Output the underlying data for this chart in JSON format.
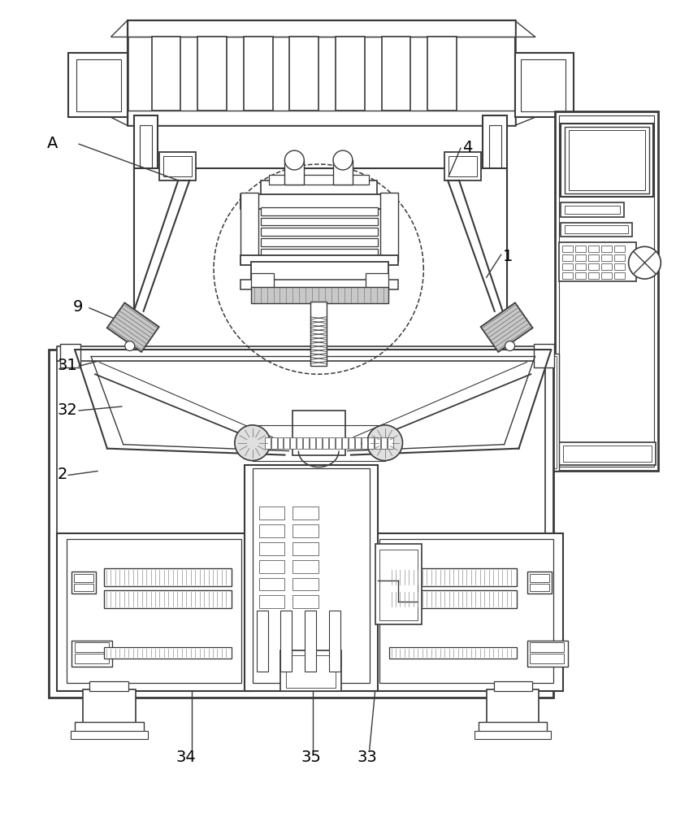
{
  "bg_color": "#ffffff",
  "lc": "#3a3a3a",
  "lw": 1.3,
  "fig_w": 8.32,
  "fig_h": 10.0,
  "dpi": 100,
  "xlim": [
    0,
    832
  ],
  "ylim": [
    0,
    1000
  ]
}
